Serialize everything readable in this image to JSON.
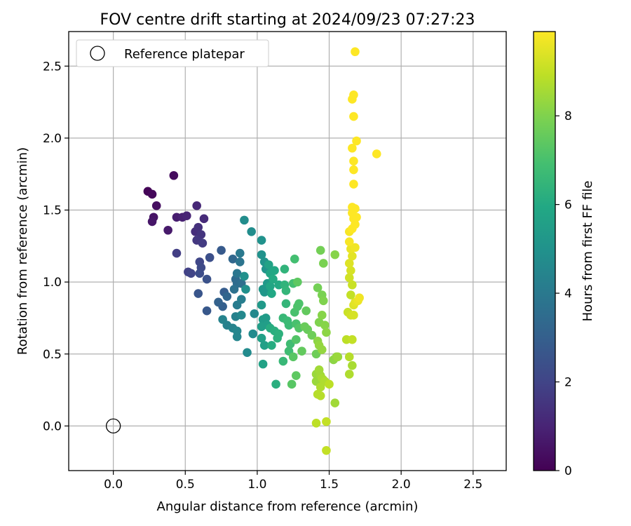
{
  "chart_data": {
    "type": "scatter",
    "title": "FOV centre drift starting at 2024/09/23 07:27:23",
    "xlabel": "Angular distance from reference (arcmin)",
    "ylabel": "Rotation from reference (arcmin)",
    "colorbar_label": "Hours from first FF file",
    "xlim": [
      -0.31,
      2.73
    ],
    "ylim": [
      -0.31,
      2.74
    ],
    "xticks": [
      0.0,
      0.5,
      1.0,
      1.5,
      2.0,
      2.5
    ],
    "xtick_labels": [
      "0.0",
      "0.5",
      "1.0",
      "1.5",
      "2.0",
      "2.5"
    ],
    "yticks": [
      0.0,
      0.5,
      1.0,
      1.5,
      2.0,
      2.5
    ],
    "ytick_labels": [
      "0.0",
      "0.5",
      "1.0",
      "1.5",
      "2.0",
      "2.5"
    ],
    "colorbar_range": [
      0,
      9.9
    ],
    "colorbar_ticks": [
      0,
      2,
      4,
      6,
      8
    ],
    "colorbar_tick_labels": [
      "0",
      "2",
      "4",
      "6",
      "8"
    ],
    "colormap": "viridis",
    "grid": true,
    "legend": {
      "position": "top-left",
      "entries": [
        "Reference platepar"
      ]
    },
    "reference_point": {
      "x": 0.0,
      "y": 0.0,
      "label": "Reference platepar"
    },
    "series": [
      {
        "points": [
          [
            0.24,
            1.63,
            0.1
          ],
          [
            0.27,
            1.61,
            0.2
          ],
          [
            0.42,
            1.74,
            0.3
          ],
          [
            0.3,
            1.53,
            0.4
          ],
          [
            0.28,
            1.45,
            0.5
          ],
          [
            0.27,
            1.42,
            0.6
          ],
          [
            0.38,
            1.36,
            0.7
          ],
          [
            0.44,
            1.45,
            0.8
          ],
          [
            0.48,
            1.45,
            0.9
          ],
          [
            0.51,
            1.46,
            1.0
          ],
          [
            0.58,
            1.53,
            1.1
          ],
          [
            0.63,
            1.44,
            1.2
          ],
          [
            0.57,
            1.35,
            1.3
          ],
          [
            0.59,
            1.38,
            1.4
          ],
          [
            0.61,
            1.33,
            1.5
          ],
          [
            0.58,
            1.29,
            1.6
          ],
          [
            0.62,
            1.27,
            1.7
          ],
          [
            0.44,
            1.2,
            1.8
          ],
          [
            0.52,
            1.07,
            1.9
          ],
          [
            0.54,
            1.06,
            2.0
          ],
          [
            0.6,
            1.14,
            2.1
          ],
          [
            0.61,
            1.1,
            2.2
          ],
          [
            0.6,
            1.06,
            2.3
          ],
          [
            0.67,
            1.17,
            2.4
          ],
          [
            0.65,
            1.02,
            2.5
          ],
          [
            0.59,
            0.92,
            2.6
          ],
          [
            0.65,
            0.8,
            2.7
          ],
          [
            0.75,
            1.22,
            2.8
          ],
          [
            0.77,
            0.93,
            2.9
          ],
          [
            0.76,
            0.83,
            3.0
          ],
          [
            0.73,
            0.86,
            3.1
          ],
          [
            0.79,
            0.9,
            3.2
          ],
          [
            0.83,
            1.16,
            3.3
          ],
          [
            0.85,
            1.02,
            3.4
          ],
          [
            0.86,
            0.99,
            3.5
          ],
          [
            0.89,
            0.99,
            3.6
          ],
          [
            0.84,
            0.95,
            3.7
          ],
          [
            0.88,
            1.14,
            3.8
          ],
          [
            0.86,
            1.06,
            3.9
          ],
          [
            0.88,
            1.2,
            4.0
          ],
          [
            0.86,
            0.84,
            4.1
          ],
          [
            0.89,
            0.88,
            4.2
          ],
          [
            0.85,
            0.76,
            4.3
          ],
          [
            0.79,
            0.7,
            4.3
          ],
          [
            0.76,
            0.74,
            4.4
          ],
          [
            0.83,
            0.68,
            4.4
          ],
          [
            0.86,
            0.66,
            4.5
          ],
          [
            0.86,
            0.62,
            4.5
          ],
          [
            0.89,
            0.77,
            4.6
          ],
          [
            0.98,
            0.78,
            4.6
          ],
          [
            0.97,
            0.64,
            4.7
          ],
          [
            0.93,
            0.51,
            4.7
          ],
          [
            0.91,
            1.43,
            4.8
          ],
          [
            0.96,
            1.35,
            4.8
          ],
          [
            0.91,
            1.04,
            4.9
          ],
          [
            0.92,
            0.95,
            4.9
          ],
          [
            1.03,
            1.29,
            5.0
          ],
          [
            1.03,
            1.19,
            5.0
          ],
          [
            1.05,
            1.14,
            5.1
          ],
          [
            1.06,
            1.09,
            5.1
          ],
          [
            1.04,
            0.95,
            5.2
          ],
          [
            1.05,
            0.93,
            5.2
          ],
          [
            1.07,
            0.99,
            5.3
          ],
          [
            1.03,
            0.84,
            5.3
          ],
          [
            1.04,
            0.74,
            5.4
          ],
          [
            1.06,
            0.75,
            5.4
          ],
          [
            1.03,
            0.69,
            5.5
          ],
          [
            1.07,
            0.7,
            5.5
          ],
          [
            1.03,
            0.61,
            5.6
          ],
          [
            1.05,
            0.56,
            5.6
          ],
          [
            1.04,
            0.43,
            5.7
          ],
          [
            1.08,
            1.12,
            5.7
          ],
          [
            1.09,
            1.06,
            5.8
          ],
          [
            1.09,
            0.97,
            5.8
          ],
          [
            1.1,
            0.92,
            5.9
          ],
          [
            1.12,
            1.08,
            5.9
          ],
          [
            1.11,
            1.02,
            6.0
          ],
          [
            1.15,
            0.98,
            6.0
          ],
          [
            1.09,
            0.68,
            6.1
          ],
          [
            1.1,
            0.56,
            6.1
          ],
          [
            1.12,
            0.66,
            6.2
          ],
          [
            1.13,
            0.29,
            6.2
          ],
          [
            1.14,
            0.61,
            6.3
          ],
          [
            1.15,
            0.64,
            6.3
          ],
          [
            1.19,
            1.09,
            6.4
          ],
          [
            1.19,
            0.98,
            6.4
          ],
          [
            1.2,
            0.94,
            6.5
          ],
          [
            1.2,
            0.85,
            6.5
          ],
          [
            1.18,
            0.75,
            6.6
          ],
          [
            1.18,
            0.45,
            6.6
          ],
          [
            1.21,
            0.73,
            6.7
          ],
          [
            1.22,
            0.7,
            6.7
          ],
          [
            1.23,
            0.57,
            6.8
          ],
          [
            1.22,
            0.52,
            6.8
          ],
          [
            1.26,
            1.16,
            6.9
          ],
          [
            1.25,
            0.99,
            6.9
          ],
          [
            1.26,
            0.79,
            7.0
          ],
          [
            1.27,
            0.71,
            7.0
          ],
          [
            1.28,
            0.83,
            7.1
          ],
          [
            1.29,
            0.85,
            7.1
          ],
          [
            1.29,
            0.68,
            7.2
          ],
          [
            1.27,
            0.6,
            7.2
          ],
          [
            1.25,
            0.48,
            7.3
          ],
          [
            1.24,
            0.29,
            7.3
          ],
          [
            1.27,
            0.35,
            7.4
          ],
          [
            1.28,
            1.0,
            7.4
          ],
          [
            1.31,
            0.52,
            7.5
          ],
          [
            1.34,
            0.8,
            7.5
          ],
          [
            1.33,
            0.69,
            7.6
          ],
          [
            1.35,
            0.67,
            7.6
          ],
          [
            1.38,
            0.63,
            7.7
          ],
          [
            1.41,
            0.5,
            7.7
          ],
          [
            1.42,
            0.96,
            7.8
          ],
          [
            1.44,
            1.22,
            7.8
          ],
          [
            1.46,
            1.13,
            7.9
          ],
          [
            1.45,
            0.91,
            7.9
          ],
          [
            1.46,
            0.87,
            8.0
          ],
          [
            1.43,
            0.72,
            8.0
          ],
          [
            1.45,
            0.77,
            8.1
          ],
          [
            1.47,
            0.7,
            8.1
          ],
          [
            1.48,
            0.65,
            8.2
          ],
          [
            1.42,
            0.59,
            8.2
          ],
          [
            1.43,
            0.56,
            8.3
          ],
          [
            1.45,
            0.53,
            8.3
          ],
          [
            1.41,
            0.36,
            8.4
          ],
          [
            1.41,
            0.31,
            8.4
          ],
          [
            1.43,
            0.39,
            8.5
          ],
          [
            1.44,
            0.35,
            8.5
          ],
          [
            1.45,
            0.33,
            8.6
          ],
          [
            1.46,
            0.32,
            8.6
          ],
          [
            1.47,
            0.31,
            8.7
          ],
          [
            1.44,
            0.27,
            8.7
          ],
          [
            1.42,
            0.22,
            8.8
          ],
          [
            1.44,
            0.21,
            8.8
          ],
          [
            1.5,
            0.29,
            8.9
          ],
          [
            1.41,
            0.02,
            8.9
          ],
          [
            1.48,
            0.03,
            9.0
          ],
          [
            1.48,
            -0.17,
            9.0
          ],
          [
            1.54,
            1.19,
            8.1
          ],
          [
            1.53,
            0.46,
            8.2
          ],
          [
            1.55,
            0.48,
            8.3
          ],
          [
            1.56,
            0.48,
            8.4
          ],
          [
            1.54,
            0.16,
            8.5
          ],
          [
            1.66,
            0.42,
            8.6
          ],
          [
            1.64,
            0.36,
            8.7
          ],
          [
            1.64,
            0.48,
            8.8
          ],
          [
            1.62,
            0.6,
            8.9
          ],
          [
            1.66,
            0.6,
            9.0
          ],
          [
            1.63,
            0.79,
            9.1
          ],
          [
            1.65,
            0.77,
            9.2
          ],
          [
            1.67,
            0.77,
            9.3
          ],
          [
            1.67,
            0.84,
            9.4
          ],
          [
            1.68,
            0.86,
            9.5
          ],
          [
            1.7,
            0.87,
            9.6
          ],
          [
            1.71,
            0.89,
            9.7
          ],
          [
            1.65,
            0.91,
            9.0
          ],
          [
            1.66,
            0.98,
            9.1
          ],
          [
            1.64,
            1.03,
            9.2
          ],
          [
            1.65,
            1.08,
            9.3
          ],
          [
            1.64,
            1.13,
            9.4
          ],
          [
            1.66,
            1.18,
            9.5
          ],
          [
            1.65,
            1.23,
            9.6
          ],
          [
            1.68,
            1.24,
            9.7
          ],
          [
            1.64,
            1.28,
            9.8
          ],
          [
            1.64,
            1.35,
            9.8
          ],
          [
            1.66,
            1.37,
            9.9
          ],
          [
            1.68,
            1.4,
            9.9
          ],
          [
            1.67,
            1.44,
            9.9
          ],
          [
            1.69,
            1.45,
            9.9
          ],
          [
            1.66,
            1.48,
            9.9
          ],
          [
            1.68,
            1.51,
            9.9
          ],
          [
            1.66,
            1.52,
            9.9
          ],
          [
            1.67,
            1.68,
            9.9
          ],
          [
            1.67,
            1.78,
            9.9
          ],
          [
            1.67,
            1.84,
            9.9
          ],
          [
            1.66,
            1.93,
            9.9
          ],
          [
            1.69,
            1.98,
            9.9
          ],
          [
            1.83,
            1.89,
            9.9
          ],
          [
            1.67,
            2.15,
            9.9
          ],
          [
            1.66,
            2.27,
            9.9
          ],
          [
            1.67,
            2.3,
            9.9
          ],
          [
            1.68,
            2.6,
            9.9
          ]
        ]
      }
    ]
  }
}
